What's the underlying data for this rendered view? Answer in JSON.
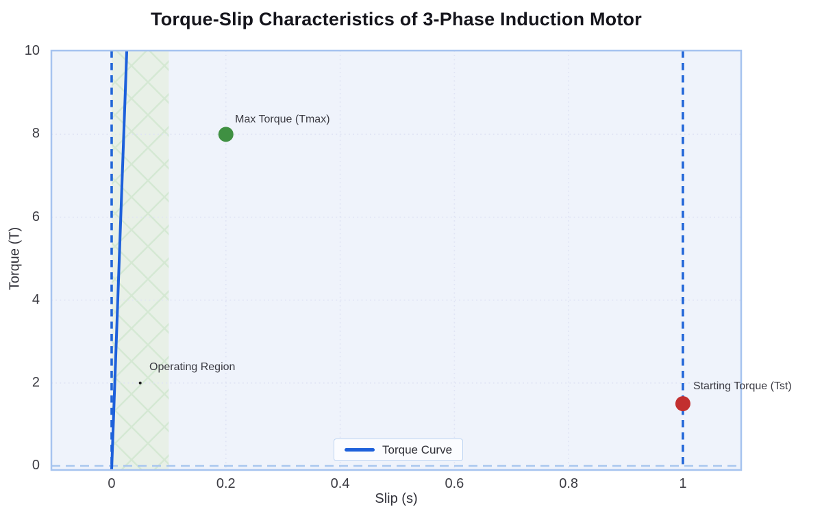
{
  "chart_data": {
    "type": "line",
    "title": "Torque-Slip Characteristics of 3-Phase Induction Motor",
    "xlabel": "Slip (s)",
    "ylabel": "Torque (T)",
    "xlim": [
      -0.1055,
      1.102
    ],
    "ylim": [
      -0.1,
      10.02
    ],
    "x_ticks": [
      {
        "value": 0,
        "label": "0"
      },
      {
        "value": 0.2,
        "label": "0.2"
      },
      {
        "value": 0.4,
        "label": "0.4"
      },
      {
        "value": 0.6,
        "label": "0.6"
      },
      {
        "value": 0.8,
        "label": "0.8"
      },
      {
        "value": 1,
        "label": "1"
      }
    ],
    "y_ticks": [
      {
        "value": 0,
        "label": "0"
      },
      {
        "value": 2,
        "label": "2"
      },
      {
        "value": 4,
        "label": "4"
      },
      {
        "value": 6,
        "label": "6"
      },
      {
        "value": 8,
        "label": "8"
      },
      {
        "value": 10,
        "label": "10"
      }
    ],
    "grid": "dotted",
    "colors": {
      "plot_background": "#eff3fb",
      "plot_border": "#a6c3ef",
      "grid": "#dfe3f4",
      "curve_blue": "#1d60db",
      "dashed_vline_blue": "#2266d8",
      "zero_line_blue": "#a9c7ef",
      "region_fill": "#e8f0e7",
      "region_hatch": "#d5e8d3",
      "max_torque_green": "#3f9042",
      "starting_torque_red": "#c22f2f",
      "operating_point_black": "#1a1a1a"
    },
    "series": [
      {
        "name": "Torque Curve",
        "color": "#1d60db",
        "width": 4,
        "points": [
          [
            0,
            -0.1
          ],
          [
            0.0265,
            10.02
          ]
        ]
      }
    ],
    "regions": [
      {
        "name": "Operating Region",
        "x0": 0,
        "x1": 0.1,
        "hatch": "x"
      }
    ],
    "vlines": [
      {
        "x": 0,
        "style": "dashed",
        "color": "#2266d8"
      },
      {
        "x": 1,
        "style": "dashed",
        "color": "#2266d8"
      }
    ],
    "hlines": [
      {
        "y": 0,
        "style": "dashed",
        "color": "#a9c7ef"
      }
    ],
    "markers": [
      {
        "name": "max-torque-marker",
        "x": 0.2,
        "y": 8,
        "r": 11,
        "color": "#3f9042"
      },
      {
        "name": "starting-torque-marker",
        "x": 1,
        "y": 1.5,
        "r": 11,
        "color": "#c22f2f"
      },
      {
        "name": "operating-point-marker",
        "x": 0.05,
        "y": 2,
        "r": 2,
        "color": "#1a1a1a"
      }
    ],
    "annotations": [
      {
        "text": "Max Torque (Tmax)",
        "x": 0.216,
        "y": 8.5
      },
      {
        "text": "Starting Torque (Tst)",
        "x": 1.018,
        "y": 2.06
      },
      {
        "text": "Operating Region",
        "x": 0.066,
        "y": 2.53
      }
    ],
    "legend": {
      "position": "lower center",
      "entries": [
        {
          "label": "Torque Curve",
          "color": "#1d60db"
        }
      ]
    }
  }
}
